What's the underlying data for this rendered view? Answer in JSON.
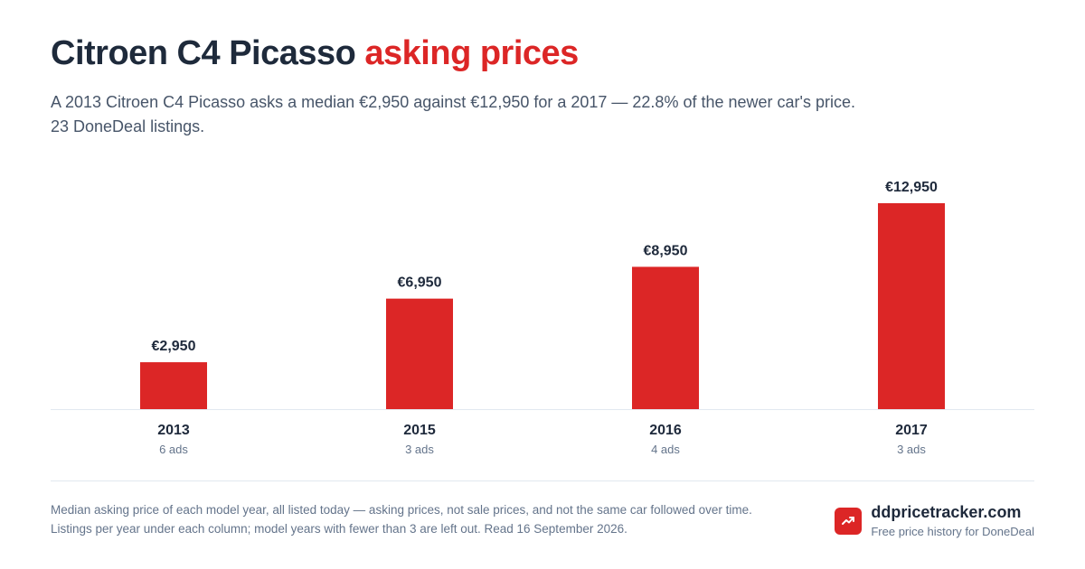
{
  "header": {
    "title_main": "Citroen C4 Picasso",
    "title_accent": "asking prices",
    "subtitle_line1": "A 2013 Citroen C4 Picasso asks a median €2,950 against €12,950 for a 2017 — 22.8% of the newer car's price.",
    "subtitle_line2": "23 DoneDeal listings."
  },
  "chart_data": {
    "type": "bar",
    "categories": [
      "2013",
      "2015",
      "2016",
      "2017"
    ],
    "values": [
      2950,
      6950,
      8950,
      12950
    ],
    "value_labels": [
      "€2,950",
      "€6,950",
      "€8,950",
      "€12,950"
    ],
    "ad_counts": [
      "6 ads",
      "3 ads",
      "4 ads",
      "3 ads"
    ],
    "ylim": [
      0,
      12950
    ],
    "grid": false,
    "bar_color": "#dc2626"
  },
  "footer": {
    "note": "Median asking price of each model year, all listed today — asking prices, not sale prices, and not the same car followed over time. Listings per year under each column; model years with fewer than 3 are left out. Read 16 September 2026.",
    "brand_name": "ddpricetracker.com",
    "brand_tagline": "Free price history for DoneDeal",
    "brand_icon": "trending-up-icon"
  }
}
